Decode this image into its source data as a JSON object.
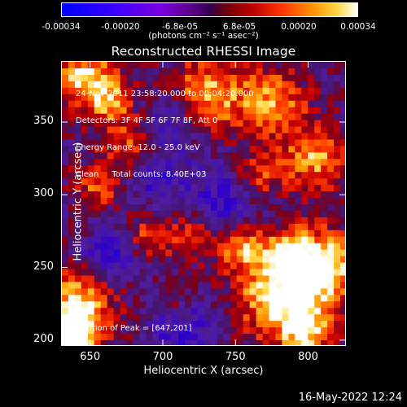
{
  "colorbar": {
    "ticks": [
      "-0.00034",
      "-0.00020",
      "-6.8e-05",
      "6.8e-05",
      "0.00020",
      "0.00034"
    ],
    "unit_label": "(photons cm⁻² s⁻¹ asec⁻²)"
  },
  "image": {
    "title": "Reconstructed RHESSI Image",
    "info_lines": [
      "24-Nov-2011 23:58:20.000 to 00:04:20.000",
      "Detectors: 3F 4F 5F 6F 7F 8F, Att 0",
      "Energy Range: 12.0 - 25.0 keV",
      "Clean     Total counts: 8.40E+03"
    ],
    "peak_label": "Position of Peak = [647,201]"
  },
  "footer": {
    "timestamp": "16-May-2022 12:24"
  },
  "chart_data": {
    "type": "heatmap",
    "title": "Reconstructed RHESSI Image",
    "xlabel": "Heliocentric X (arcsec)",
    "ylabel": "Heliocentric Y (arcsec)",
    "xlim": [
      630,
      826
    ],
    "ylim": [
      196,
      392
    ],
    "xticks": [
      650,
      700,
      750,
      800
    ],
    "yticks": [
      200,
      250,
      300,
      350
    ],
    "colorbar_range": [
      -0.00034,
      0.00034
    ],
    "peak_position": [
      647,
      201
    ]
  }
}
